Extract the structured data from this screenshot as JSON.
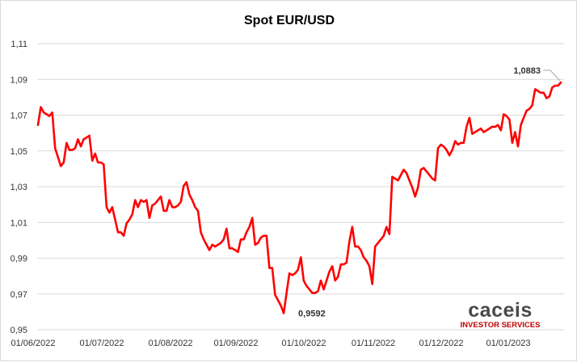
{
  "chart_data": {
    "type": "line",
    "title": "Spot EUR/USD",
    "xlabel": "",
    "ylabel": "",
    "ylim": [
      0.95,
      1.11
    ],
    "yticks": [
      "0,95",
      "0,97",
      "0,99",
      "1,01",
      "1,03",
      "1,05",
      "1,07",
      "1,09",
      "1,11"
    ],
    "yticks_values": [
      0.95,
      0.97,
      0.99,
      1.01,
      1.03,
      1.05,
      1.07,
      1.09,
      1.11
    ],
    "xticks": [
      "01/06/2022",
      "01/07/2022",
      "01/08/2022",
      "01/09/2022",
      "01/10/2022",
      "01/11/2022",
      "01/12/2022",
      "01/01/2023"
    ],
    "grid": true,
    "legend": "none",
    "line_color": "#ff0000",
    "series": [
      {
        "values": [
          1.0645,
          1.0745,
          1.0715,
          1.0705,
          1.0695,
          1.0715,
          1.0515,
          1.0465,
          1.0415,
          1.0435,
          1.0545,
          1.0505,
          1.0505,
          1.0515,
          1.0565,
          1.0525,
          1.0565,
          1.0575,
          1.0585,
          1.0445,
          1.0485,
          1.0435,
          1.0435,
          1.0425,
          1.0185,
          1.0155,
          1.0185,
          1.0115,
          1.0045,
          1.0045,
          1.0025,
          1.0095,
          1.0115,
          1.0145,
          1.0225,
          1.0185,
          1.0225,
          1.0215,
          1.0225,
          1.0125,
          1.0195,
          1.0205,
          1.0225,
          1.0245,
          1.0165,
          1.0165,
          1.0225,
          1.0185,
          1.0185,
          1.0195,
          1.0215,
          1.0305,
          1.0325,
          1.0255,
          1.0225,
          1.0185,
          1.0165,
          1.0045,
          1.0005,
          0.9975,
          0.9945,
          0.9975,
          0.9965,
          0.9975,
          0.9985,
          1.0005,
          1.0065,
          0.9955,
          0.9955,
          0.9945,
          0.9935,
          1.0005,
          1.0005,
          1.0045,
          1.0075,
          1.0125,
          0.9975,
          0.9985,
          1.0015,
          1.0025,
          1.0025,
          0.9845,
          0.9845,
          0.9695,
          0.9665,
          0.9635,
          0.9592,
          0.9705,
          0.9815,
          0.9805,
          0.9815,
          0.9835,
          0.9905,
          0.9775,
          0.9745,
          0.9725,
          0.9705,
          0.9705,
          0.9715,
          0.9775,
          0.9725,
          0.9775,
          0.9825,
          0.9855,
          0.9775,
          0.9795,
          0.9865,
          0.9865,
          0.9875,
          0.9995,
          1.0075,
          0.9965,
          0.9965,
          0.9945,
          0.9905,
          0.9885,
          0.9855,
          0.9755,
          0.9965,
          0.9985,
          1.0005,
          1.0025,
          1.0075,
          1.0035,
          1.0355,
          1.0345,
          1.0335,
          1.0365,
          1.0395,
          1.0375,
          1.0335,
          1.0295,
          1.0245,
          1.0295,
          1.0395,
          1.0405,
          1.0385,
          1.0365,
          1.0345,
          1.0335,
          1.0515,
          1.0535,
          1.0525,
          1.0505,
          1.0475,
          1.0505,
          1.0555,
          1.0535,
          1.0545,
          1.0545,
          1.0635,
          1.0685,
          1.0595,
          1.0605,
          1.0615,
          1.0625,
          1.0605,
          1.0615,
          1.0625,
          1.0635,
          1.0635,
          1.0645,
          1.0615,
          1.0705,
          1.0695,
          1.0675,
          1.0545,
          1.0605,
          1.0525,
          1.0645,
          1.0685,
          1.0725,
          1.0735,
          1.0755,
          1.0845,
          1.0835,
          1.0825,
          1.0825,
          1.0795,
          1.0805,
          1.0855,
          1.0865,
          1.0865,
          1.0883
        ]
      }
    ],
    "annotations": [
      {
        "label": "0,9592",
        "index": 86
      },
      {
        "label": "1,0883",
        "index": 183
      }
    ]
  },
  "logo": {
    "name": "caceis",
    "tagline": "INVESTOR SERVICES"
  }
}
